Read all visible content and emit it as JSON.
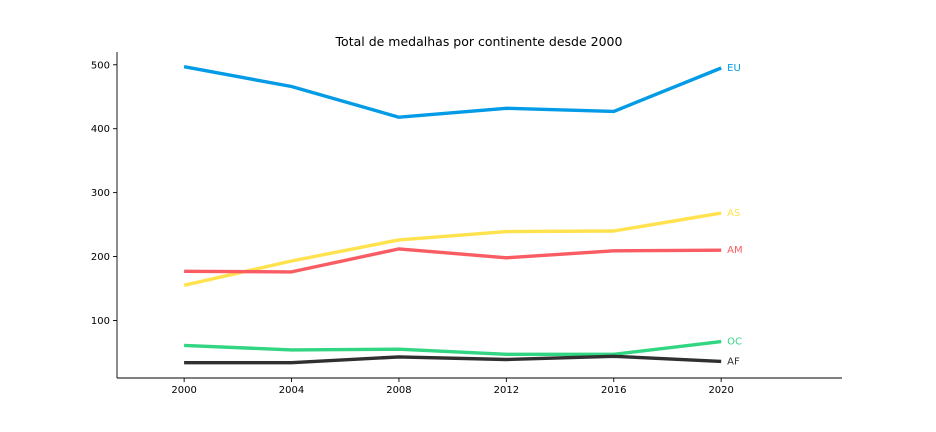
{
  "chart_data": {
    "type": "line",
    "title": "Total de medalhas por continente desde 2000",
    "xlabel": "",
    "ylabel": "",
    "x": [
      2000,
      2004,
      2008,
      2012,
      2016,
      2020
    ],
    "xlim": [
      1997.5,
      2024.5
    ],
    "ylim": [
      10,
      520
    ],
    "xticks": [
      2000,
      2004,
      2008,
      2012,
      2016,
      2020
    ],
    "yticks": [
      100,
      200,
      300,
      400,
      500
    ],
    "grid": false,
    "legend": "none",
    "series": [
      {
        "name": "EU",
        "color": "#039be5",
        "values": [
          497,
          466,
          418,
          432,
          427,
          495
        ]
      },
      {
        "name": "AS",
        "color": "#ffe24d",
        "values": [
          155,
          193,
          226,
          239,
          240,
          268
        ]
      },
      {
        "name": "AM",
        "color": "#f95c63",
        "values": [
          177,
          176,
          212,
          198,
          209,
          210
        ]
      },
      {
        "name": "OC",
        "color": "#32d581",
        "values": [
          61,
          54,
          55,
          47,
          47,
          67
        ]
      },
      {
        "name": "AF",
        "color": "#303030",
        "values": [
          34,
          34,
          43,
          39,
          44,
          36
        ]
      }
    ]
  }
}
